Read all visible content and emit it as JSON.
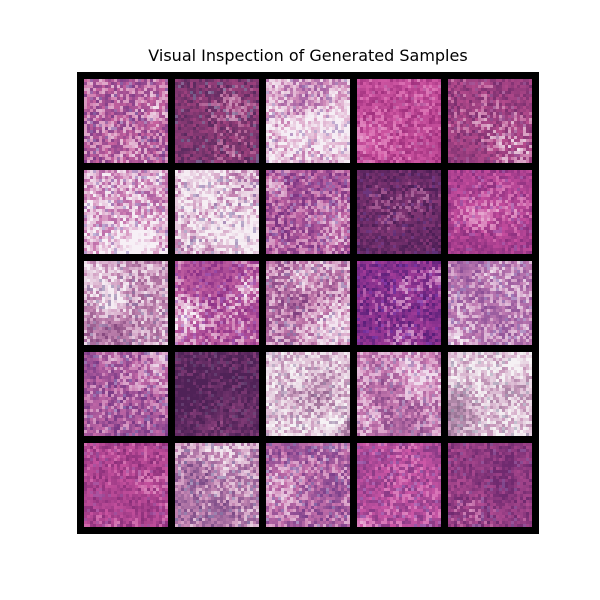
{
  "title": "Visual Inspection of Generated Samples",
  "grid": {
    "rows": 5,
    "cols": 5,
    "samples": [
      {
        "row": 0,
        "col": 0,
        "base": "#c8639f",
        "light": "#f2e2ee",
        "dark": "#7a3a86",
        "accent": "#8a6fb0",
        "lightness": 0.55
      },
      {
        "row": 0,
        "col": 1,
        "base": "#a0427f",
        "light": "#d9a9c9",
        "dark": "#5a2a5f",
        "accent": "#7a7aa0",
        "lightness": 0.35
      },
      {
        "row": 0,
        "col": 2,
        "base": "#d48fbb",
        "light": "#f6eef5",
        "dark": "#8a4a96",
        "accent": "#9a7fb8",
        "lightness": 0.7
      },
      {
        "row": 0,
        "col": 3,
        "base": "#d35aa6",
        "light": "#e9a2cf",
        "dark": "#a0307e",
        "accent": "#c070b0",
        "lightness": 0.45
      },
      {
        "row": 0,
        "col": 4,
        "base": "#b94d8f",
        "light": "#f3e6ef",
        "dark": "#7a2f6f",
        "accent": "#9a5a9a",
        "lightness": 0.45
      },
      {
        "row": 1,
        "col": 0,
        "base": "#cf80b4",
        "light": "#f7f0f6",
        "dark": "#8a3f8f",
        "accent": "#9a85c0",
        "lightness": 0.7
      },
      {
        "row": 1,
        "col": 1,
        "base": "#c98ab6",
        "light": "#f6eef4",
        "dark": "#7e3f86",
        "accent": "#8f7fb0",
        "lightness": 0.7
      },
      {
        "row": 1,
        "col": 2,
        "base": "#c569a6",
        "light": "#ead0e4",
        "dark": "#7a3382",
        "accent": "#8f6fb5",
        "lightness": 0.5
      },
      {
        "row": 1,
        "col": 3,
        "base": "#8b3a7a",
        "light": "#c48ab6",
        "dark": "#4e1f57",
        "accent": "#6a3a8a",
        "lightness": 0.25
      },
      {
        "row": 1,
        "col": 4,
        "base": "#c74e9f",
        "light": "#e6a6cf",
        "dark": "#8a2f7e",
        "accent": "#a060b0",
        "lightness": 0.4
      },
      {
        "row": 2,
        "col": 0,
        "base": "#c98db7",
        "light": "#f5ecf3",
        "dark": "#86497f",
        "accent": "#8a7aa6",
        "lightness": 0.65
      },
      {
        "row": 2,
        "col": 1,
        "base": "#c462a3",
        "light": "#f7eef6",
        "dark": "#8a2f86",
        "accent": "#a05ab8",
        "lightness": 0.55
      },
      {
        "row": 2,
        "col": 2,
        "base": "#c97fb0",
        "light": "#f3e5f0",
        "dark": "#7f3f7f",
        "accent": "#8f7fb0",
        "lightness": 0.6
      },
      {
        "row": 2,
        "col": 3,
        "base": "#a33c99",
        "light": "#e2b8dc",
        "dark": "#5a1f7a",
        "accent": "#7a3ab0",
        "lightness": 0.4
      },
      {
        "row": 2,
        "col": 4,
        "base": "#c47fb5",
        "light": "#f4eaf3",
        "dark": "#8a4f96",
        "accent": "#9a85c0",
        "lightness": 0.6
      },
      {
        "row": 3,
        "col": 0,
        "base": "#c46aa8",
        "light": "#ecd6e8",
        "dark": "#7a3a86",
        "accent": "#8a7ab8",
        "lightness": 0.5
      },
      {
        "row": 3,
        "col": 1,
        "base": "#8a3f7c",
        "light": "#b77aa8",
        "dark": "#4f2257",
        "accent": "#6a4a7a",
        "lightness": 0.2
      },
      {
        "row": 3,
        "col": 2,
        "base": "#d3a6c6",
        "light": "#f6f2f5",
        "dark": "#8a5a86",
        "accent": "#a090b0",
        "lightness": 0.75
      },
      {
        "row": 3,
        "col": 3,
        "base": "#cf7fb5",
        "light": "#f0dced",
        "dark": "#8a4a8a",
        "accent": "#9a85b8",
        "lightness": 0.6
      },
      {
        "row": 3,
        "col": 4,
        "base": "#cfa0c2",
        "light": "#f5f1f4",
        "dark": "#8a6a8a",
        "accent": "#a0a0b5",
        "lightness": 0.75
      },
      {
        "row": 4,
        "col": 0,
        "base": "#c7529f",
        "light": "#e6a8cf",
        "dark": "#8a2f7a",
        "accent": "#a05aa6",
        "lightness": 0.45
      },
      {
        "row": 4,
        "col": 1,
        "base": "#c98ab6",
        "light": "#f2e6ef",
        "dark": "#7a4a86",
        "accent": "#8a85b0",
        "lightness": 0.6
      },
      {
        "row": 4,
        "col": 2,
        "base": "#c973ad",
        "light": "#eed8ea",
        "dark": "#7a3f8a",
        "accent": "#8a7ab5",
        "lightness": 0.55
      },
      {
        "row": 4,
        "col": 3,
        "base": "#cf58a8",
        "light": "#eab2d8",
        "dark": "#8a3a86",
        "accent": "#9a6ab8",
        "lightness": 0.5
      },
      {
        "row": 4,
        "col": 4,
        "base": "#b04b92",
        "light": "#e2a8cf",
        "dark": "#6f2a6f",
        "accent": "#8a5aa0",
        "lightness": 0.4
      }
    ]
  }
}
